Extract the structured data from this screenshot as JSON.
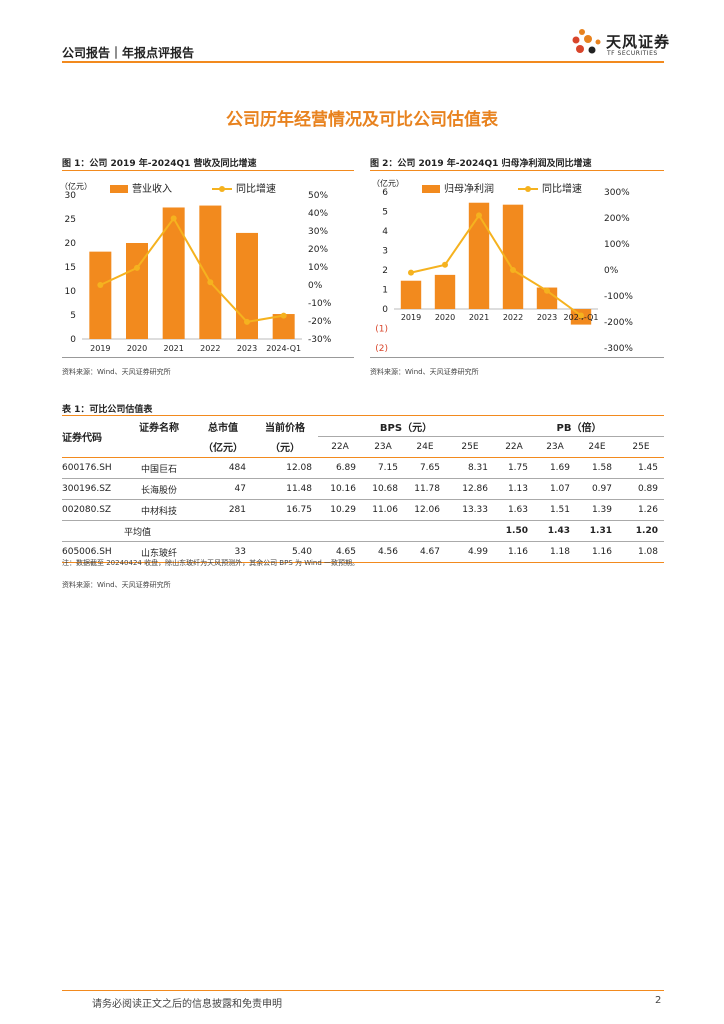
{
  "header": {
    "title": "公司报告｜年报点评报告",
    "logo_text": "天风证券",
    "logo_sub": "TF SECURITIES"
  },
  "main_title": "公司历年经营情况及可比公司估值表",
  "figure1": {
    "caption": "图 1：公司 2019 年-2024Q1 营收及同比增速",
    "source": "资料来源：Wind、天风证券研究所"
  },
  "figure2": {
    "caption": "图 2：公司 2019 年-2024Q1 归母净利润及同比增速",
    "source": "资料来源：Wind、天风证券研究所"
  },
  "chart_data": [
    {
      "type": "bar",
      "categories": [
        "2019",
        "2020",
        "2021",
        "2022",
        "2023",
        "2024-Q1"
      ],
      "unit_label": "（亿元）",
      "series": [
        {
          "name": "营业收入",
          "type": "bar",
          "axis": "left",
          "values": [
            18.2,
            20.0,
            27.4,
            27.8,
            22.1,
            5.2
          ]
        },
        {
          "name": "同比增速",
          "type": "line",
          "axis": "right",
          "values": [
            0.0,
            9.5,
            37.0,
            1.5,
            -20.5,
            -17.0
          ]
        }
      ],
      "left_ticks": [
        "0",
        "5",
        "10",
        "15",
        "20",
        "25",
        "30"
      ],
      "left_range": [
        0,
        30
      ],
      "right_ticks": [
        "-30%",
        "-20%",
        "-10%",
        "0%",
        "10%",
        "20%",
        "30%",
        "40%",
        "50%"
      ],
      "right_range": [
        -30,
        50
      ],
      "colors": {
        "bar": "#f28a1e",
        "line": "#f5b21f"
      }
    },
    {
      "type": "bar",
      "categories": [
        "2019",
        "2020",
        "2021",
        "2022",
        "2023",
        "2024-Q1"
      ],
      "unit_label": "（亿元）",
      "series": [
        {
          "name": "归母净利润",
          "type": "bar",
          "axis": "left",
          "values": [
            1.45,
            1.75,
            5.45,
            5.35,
            1.1,
            -0.8
          ]
        },
        {
          "name": "同比增速",
          "type": "line",
          "axis": "right",
          "values": [
            -10,
            20,
            210,
            0,
            -80,
            -175
          ]
        }
      ],
      "left_ticks": [
        "(2)",
        "(1)",
        "0",
        "1",
        "2",
        "3",
        "4",
        "5",
        "6"
      ],
      "left_range": [
        -2,
        6
      ],
      "right_ticks": [
        "-300%",
        "-200%",
        "-100%",
        "0%",
        "100%",
        "200%",
        "300%"
      ],
      "right_range": [
        -300,
        300
      ],
      "colors": {
        "bar": "#f28a1e",
        "line": "#f5b21f"
      }
    }
  ],
  "table": {
    "caption": "表 1：可比公司估值表",
    "headers": {
      "code": "证券代码",
      "name": "证券名称",
      "mktcap": "总市值",
      "mktcap_unit": "（亿元）",
      "price": "当前价格",
      "price_unit": "（元）",
      "bps": "BPS（元）",
      "pb": "PB（倍）",
      "years": [
        "22A",
        "23A",
        "24E",
        "25E"
      ]
    },
    "rows": [
      {
        "code": "600176.SH",
        "name": "中国巨石",
        "mktcap": "484",
        "price": "12.08",
        "bps": [
          "6.89",
          "7.15",
          "7.65",
          "8.31"
        ],
        "pb": [
          "1.75",
          "1.69",
          "1.58",
          "1.45"
        ]
      },
      {
        "code": "300196.SZ",
        "name": "长海股份",
        "mktcap": "47",
        "price": "11.48",
        "bps": [
          "10.16",
          "10.68",
          "11.78",
          "12.86"
        ],
        "pb": [
          "1.13",
          "1.07",
          "0.97",
          "0.89"
        ]
      },
      {
        "code": "002080.SZ",
        "name": "中材科技",
        "mktcap": "281",
        "price": "16.75",
        "bps": [
          "10.29",
          "11.06",
          "12.06",
          "13.33"
        ],
        "pb": [
          "1.63",
          "1.51",
          "1.39",
          "1.26"
        ]
      }
    ],
    "avg": {
      "label": "平均值",
      "pb": [
        "1.50",
        "1.43",
        "1.31",
        "1.20"
      ]
    },
    "target": {
      "code": "605006.SH",
      "name": "山东玻纤",
      "mktcap": "33",
      "price": "5.40",
      "bps": [
        "4.65",
        "4.56",
        "4.67",
        "4.99"
      ],
      "pb": [
        "1.16",
        "1.18",
        "1.16",
        "1.08"
      ]
    },
    "note": "注：数据截至 20240424 收盘，除山东玻纤为天风预测外，其余公司 BPS 为 Wind 一致预期。",
    "source": "资料来源：Wind、天风证券研究所"
  },
  "footer": {
    "disclaimer": "请务必阅读正文之后的信息披露和免责申明",
    "page": "2"
  }
}
